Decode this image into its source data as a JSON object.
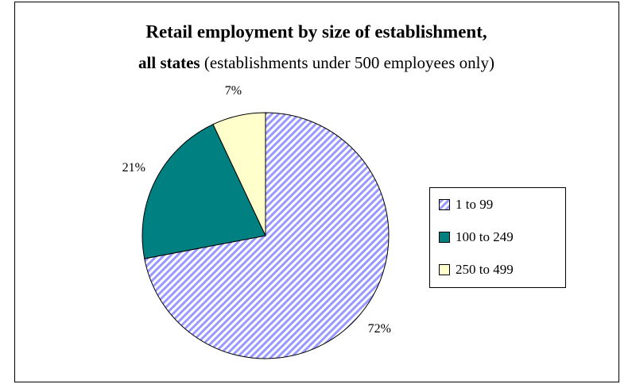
{
  "chart_data": {
    "type": "pie",
    "title": "Retail employment by size of establishment,",
    "title_line2": "all states",
    "subtitle": "(establishments under 500 employees only)",
    "categories": [
      "1 to 99",
      "100 to 249",
      "250 to 499"
    ],
    "values": [
      72,
      21,
      7
    ],
    "value_labels": [
      "72%",
      "21%",
      "7%"
    ],
    "colors": [
      "#9999ff",
      "#008080",
      "#ffffcc"
    ],
    "hatched": [
      true,
      false,
      false
    ],
    "legend": "right"
  }
}
